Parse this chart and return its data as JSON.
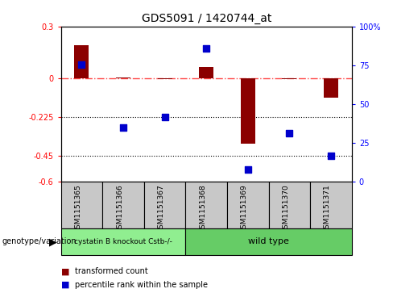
{
  "title": "GDS5091 / 1420744_at",
  "samples": [
    "GSM1151365",
    "GSM1151366",
    "GSM1151367",
    "GSM1151368",
    "GSM1151369",
    "GSM1151370",
    "GSM1151371"
  ],
  "red_bars": [
    0.19,
    0.005,
    -0.005,
    0.065,
    -0.38,
    -0.005,
    -0.115
  ],
  "blue_dots_left": [
    0.08,
    -0.285,
    -0.225,
    0.17,
    -0.53,
    -0.32,
    -0.45
  ],
  "ylim_left": [
    -0.6,
    0.3
  ],
  "ylim_right": [
    0,
    100
  ],
  "yticks_left": [
    0.3,
    0,
    -0.225,
    -0.45,
    -0.6
  ],
  "ytick_labels_left": [
    "0.3",
    "0",
    "-0.225",
    "-0.45",
    "-0.6"
  ],
  "yticks_right": [
    100,
    75,
    50,
    25,
    0
  ],
  "ytick_labels_right": [
    "100%",
    "75",
    "50",
    "25",
    "0"
  ],
  "hlines": [
    -0.225,
    -0.45
  ],
  "zero_line": 0,
  "group1_label": "cystatin B knockout Cstb-/-",
  "group2_label": "wild type",
  "group1_count": 3,
  "group2_count": 4,
  "group1_color": "#90EE90",
  "group2_color": "#66CC66",
  "red_color": "#8B0000",
  "blue_color": "#0000CC",
  "zero_line_color": "#FF4444",
  "hline_color": "black",
  "bg_color": "#C8C8C8",
  "legend_red_label": "transformed count",
  "legend_blue_label": "percentile rank within the sample",
  "bar_width": 0.35,
  "dot_size": 30
}
